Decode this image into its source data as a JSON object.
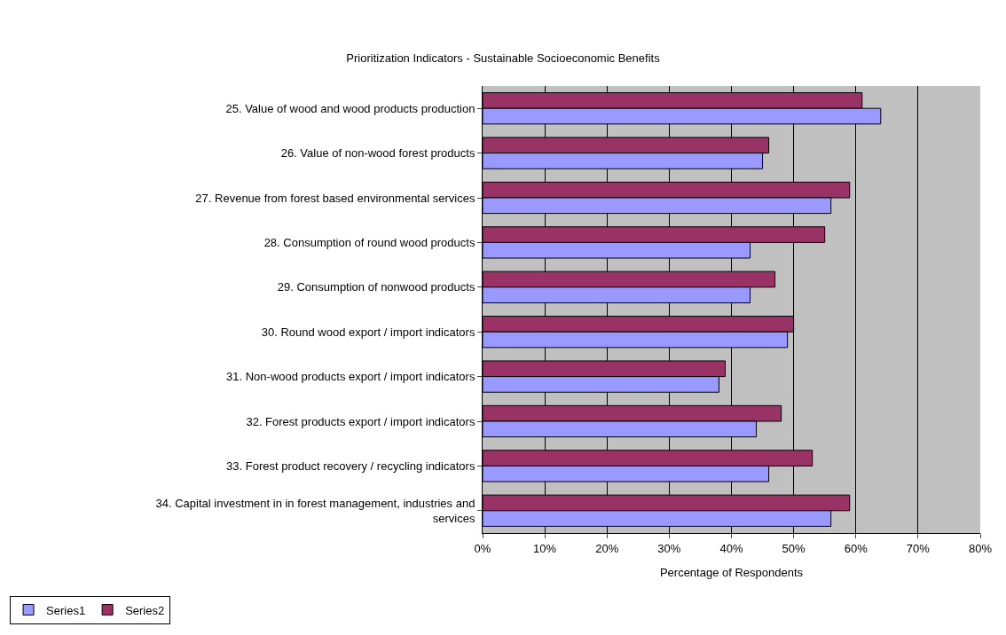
{
  "chart_data": {
    "type": "bar",
    "orientation": "horizontal",
    "title": "Prioritization Indicators - Sustainable Socioeconomic Benefits",
    "xlabel": "Percentage of Respondents",
    "categories": [
      "25. Value of wood and wood products production",
      "26. Value of non-wood forest products",
      "27. Revenue from forest based environmental services",
      "28. Consumption of round wood products",
      "29. Consumption of nonwood products",
      "30. Round wood export / import indicators",
      "31. Non-wood products export / import indicators",
      "32. Forest products export / import indicators",
      "33. Forest product recovery / recycling indicators",
      "34. Capital investment in in forest management, industries and services"
    ],
    "series": [
      {
        "name": "Series1",
        "color": "#9999ff",
        "values": [
          64,
          45,
          56,
          43,
          43,
          49,
          38,
          44,
          46,
          56
        ]
      },
      {
        "name": "Series2",
        "color": "#993366",
        "values": [
          61,
          46,
          59,
          55,
          47,
          50,
          39,
          48,
          53,
          59
        ]
      }
    ],
    "xlim": [
      0,
      80
    ],
    "xticks": [
      {
        "value": 0,
        "label": "0%"
      },
      {
        "value": 10,
        "label": "10%"
      },
      {
        "value": 20,
        "label": "20%"
      },
      {
        "value": 30,
        "label": "30%"
      },
      {
        "value": 40,
        "label": "40%"
      },
      {
        "value": 50,
        "label": "50%"
      },
      {
        "value": 60,
        "label": "60%"
      },
      {
        "value": 70,
        "label": "70%"
      },
      {
        "value": 80,
        "label": "80%"
      }
    ],
    "grid": "x",
    "legend": "bottom left"
  }
}
